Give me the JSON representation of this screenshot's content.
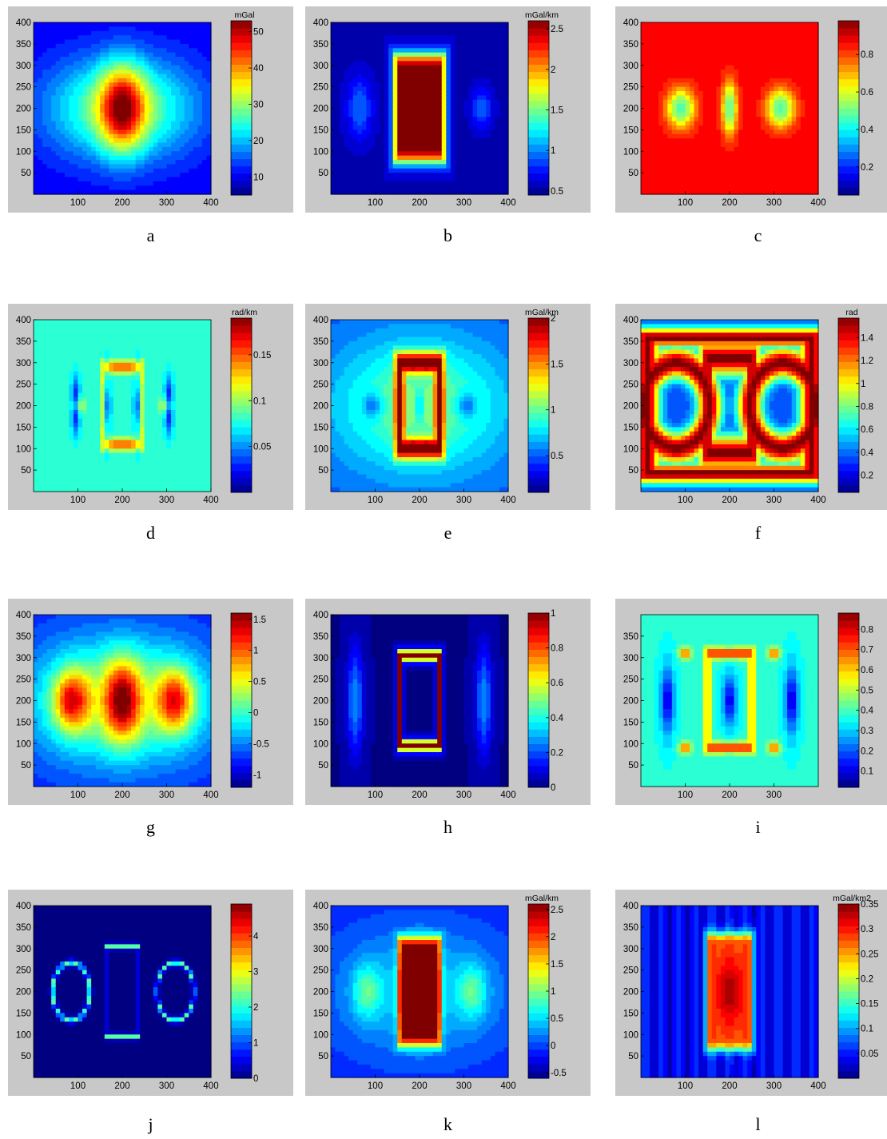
{
  "figure": {
    "panels": [
      {
        "letter": "a",
        "x_ticks": [
          "100",
          "200",
          "300",
          "400"
        ],
        "y_ticks": [
          "50",
          "100",
          "150",
          "200",
          "250",
          "300",
          "350",
          "400"
        ],
        "unit": "mGal",
        "cbar_ticks": [
          "10",
          "20",
          "30",
          "40",
          "50"
        ]
      },
      {
        "letter": "b",
        "x_ticks": [
          "100",
          "200",
          "300",
          "400"
        ],
        "y_ticks": [
          "50",
          "100",
          "150",
          "200",
          "250",
          "300",
          "350",
          "400"
        ],
        "unit": "mGal/km",
        "cbar_ticks": [
          "0.5",
          "1",
          "1.5",
          "2",
          "2.5"
        ]
      },
      {
        "letter": "c",
        "x_ticks": [
          "100",
          "200",
          "300",
          "400"
        ],
        "y_ticks": [
          "50",
          "100",
          "150",
          "200",
          "250",
          "300",
          "350",
          "400"
        ],
        "unit": "",
        "cbar_ticks": [
          "0.2",
          "0.4",
          "0.6",
          "0.8"
        ]
      },
      {
        "letter": "d",
        "x_ticks": [
          "100",
          "200",
          "300",
          "400"
        ],
        "y_ticks": [
          "50",
          "100",
          "150",
          "200",
          "250",
          "300",
          "350",
          "400"
        ],
        "unit": "rad/km",
        "cbar_ticks": [
          "0.05",
          "0.1",
          "0.15"
        ]
      },
      {
        "letter": "e",
        "x_ticks": [
          "100",
          "200",
          "300",
          "400"
        ],
        "y_ticks": [
          "50",
          "100",
          "150",
          "200",
          "250",
          "300",
          "350",
          "400"
        ],
        "unit": "mGal/km",
        "cbar_ticks": [
          "0.5",
          "1",
          "1.5",
          "2"
        ]
      },
      {
        "letter": "f",
        "x_ticks": [
          "100",
          "200",
          "300",
          "400"
        ],
        "y_ticks": [
          "50",
          "100",
          "150",
          "200",
          "250",
          "300",
          "350",
          "400"
        ],
        "unit": "rad",
        "cbar_ticks": [
          "0.2",
          "0.4",
          "0.6",
          "0.8",
          "1",
          "1.2",
          "1.4"
        ]
      },
      {
        "letter": "g",
        "x_ticks": [
          "100",
          "200",
          "300",
          "400"
        ],
        "y_ticks": [
          "50",
          "100",
          "150",
          "200",
          "250",
          "300",
          "350",
          "400"
        ],
        "unit": "",
        "cbar_ticks": [
          "-1",
          "-0.5",
          "0",
          "0.5",
          "1",
          "1.5"
        ]
      },
      {
        "letter": "h",
        "x_ticks": [
          "100",
          "200",
          "300",
          "400"
        ],
        "y_ticks": [
          "50",
          "100",
          "150",
          "200",
          "250",
          "300",
          "350",
          "400"
        ],
        "unit": "",
        "cbar_ticks": [
          "0",
          "0.2",
          "0.4",
          "0.6",
          "0.8",
          "1"
        ]
      },
      {
        "letter": "i",
        "x_ticks": [
          "100",
          "200",
          "300"
        ],
        "y_ticks": [
          "50",
          "100",
          "150",
          "200",
          "250",
          "300",
          "350"
        ],
        "unit": "",
        "cbar_ticks": [
          "0.1",
          "0.2",
          "0.3",
          "0.4",
          "0.5",
          "0.6",
          "0.7",
          "0.8"
        ]
      },
      {
        "letter": "j",
        "x_ticks": [
          "100",
          "200",
          "300",
          "400"
        ],
        "y_ticks": [
          "50",
          "100",
          "150",
          "200",
          "250",
          "300",
          "350",
          "400"
        ],
        "unit": "",
        "cbar_ticks": [
          "0",
          "1",
          "2",
          "3",
          "4"
        ]
      },
      {
        "letter": "k",
        "x_ticks": [
          "100",
          "200",
          "300",
          "400"
        ],
        "y_ticks": [
          "50",
          "100",
          "150",
          "200",
          "250",
          "300",
          "350",
          "400"
        ],
        "unit": "mGal/km",
        "cbar_ticks": [
          "-0.5",
          "0",
          "0.5",
          "1",
          "1.5",
          "2",
          "2.5"
        ]
      },
      {
        "letter": "l",
        "x_ticks": [
          "100",
          "200",
          "300",
          "400"
        ],
        "y_ticks": [
          "50",
          "100",
          "150",
          "200",
          "250",
          "300",
          "350",
          "400"
        ],
        "unit": "mGal/km2",
        "cbar_ticks": [
          "0.05",
          "0.1",
          "0.15",
          "0.2",
          "0.25",
          "0.3",
          "0.35"
        ]
      }
    ]
  },
  "chart_data": [
    {
      "type": "heatmap",
      "panel": "a",
      "xlim": [
        0,
        400
      ],
      "ylim": [
        0,
        400
      ],
      "colorbar_label": "mGal",
      "clim": [
        5,
        53
      ],
      "colorbar_ticks": [
        10,
        20,
        30,
        40,
        50
      ]
    },
    {
      "type": "heatmap",
      "panel": "b",
      "xlim": [
        0,
        400
      ],
      "ylim": [
        0,
        400
      ],
      "colorbar_label": "mGal/km",
      "clim": [
        0.45,
        2.6
      ],
      "colorbar_ticks": [
        0.5,
        1,
        1.5,
        2,
        2.5
      ]
    },
    {
      "type": "heatmap",
      "panel": "c",
      "xlim": [
        0,
        400
      ],
      "ylim": [
        0,
        400
      ],
      "colorbar_label": "",
      "clim": [
        0.05,
        0.98
      ],
      "colorbar_ticks": [
        0.2,
        0.4,
        0.6,
        0.8
      ]
    },
    {
      "type": "heatmap",
      "panel": "d",
      "xlim": [
        0,
        400
      ],
      "ylim": [
        0,
        400
      ],
      "colorbar_label": "rad/km",
      "clim": [
        0.0,
        0.19
      ],
      "colorbar_ticks": [
        0.05,
        0.1,
        0.15
      ]
    },
    {
      "type": "heatmap",
      "panel": "e",
      "xlim": [
        0,
        400
      ],
      "ylim": [
        0,
        400
      ],
      "colorbar_label": "mGal/km",
      "clim": [
        0.1,
        2.0
      ],
      "colorbar_ticks": [
        0.5,
        1,
        1.5,
        2
      ]
    },
    {
      "type": "heatmap",
      "panel": "f",
      "xlim": [
        0,
        400
      ],
      "ylim": [
        0,
        400
      ],
      "colorbar_label": "rad",
      "clim": [
        0.05,
        1.57
      ],
      "colorbar_ticks": [
        0.2,
        0.4,
        0.6,
        0.8,
        1,
        1.2,
        1.4
      ]
    },
    {
      "type": "heatmap",
      "panel": "g",
      "xlim": [
        0,
        400
      ],
      "ylim": [
        0,
        400
      ],
      "colorbar_label": "",
      "clim": [
        -1.2,
        1.6
      ],
      "colorbar_ticks": [
        -1,
        -0.5,
        0,
        0.5,
        1,
        1.5
      ]
    },
    {
      "type": "heatmap",
      "panel": "h",
      "xlim": [
        0,
        400
      ],
      "ylim": [
        0,
        400
      ],
      "colorbar_label": "",
      "clim": [
        0,
        1
      ],
      "colorbar_ticks": [
        0,
        0.2,
        0.4,
        0.6,
        0.8,
        1
      ]
    },
    {
      "type": "heatmap",
      "panel": "i",
      "xlim": [
        0,
        400
      ],
      "ylim": [
        0,
        400
      ],
      "colorbar_label": "",
      "clim": [
        0.02,
        0.88
      ],
      "colorbar_ticks": [
        0.1,
        0.2,
        0.3,
        0.4,
        0.5,
        0.6,
        0.7,
        0.8
      ]
    },
    {
      "type": "heatmap",
      "panel": "j",
      "xlim": [
        0,
        400
      ],
      "ylim": [
        0,
        400
      ],
      "colorbar_label": "",
      "clim": [
        0,
        4.9
      ],
      "colorbar_ticks": [
        0,
        1,
        2,
        3,
        4
      ]
    },
    {
      "type": "heatmap",
      "panel": "k",
      "xlim": [
        0,
        400
      ],
      "ylim": [
        0,
        400
      ],
      "colorbar_label": "mGal/km",
      "clim": [
        -0.6,
        2.6
      ],
      "colorbar_ticks": [
        -0.5,
        0,
        0.5,
        1,
        1.5,
        2,
        2.5
      ]
    },
    {
      "type": "heatmap",
      "panel": "l",
      "xlim": [
        0,
        400
      ],
      "ylim": [
        0,
        400
      ],
      "colorbar_label": "mGal/km2",
      "clim": [
        0.0,
        0.35
      ],
      "colorbar_ticks": [
        0.05,
        0.1,
        0.15,
        0.2,
        0.25,
        0.3,
        0.35
      ]
    }
  ]
}
